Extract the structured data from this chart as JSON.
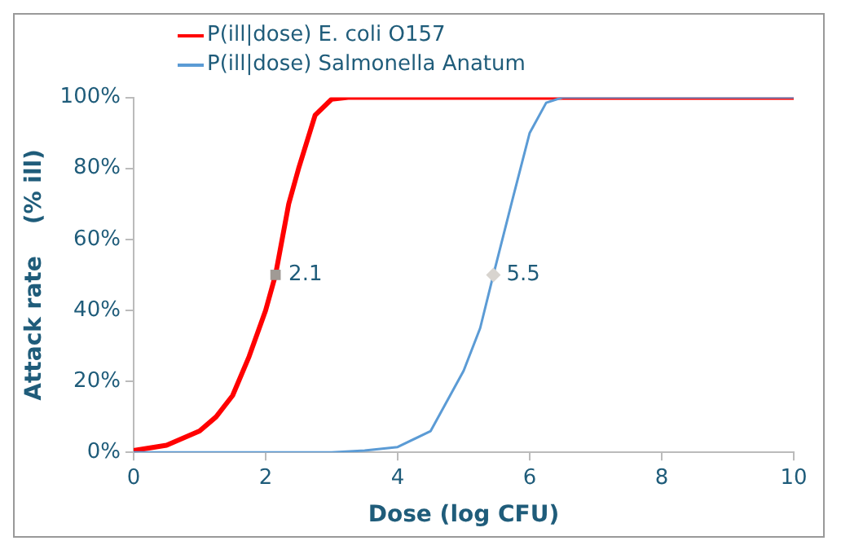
{
  "chart_data": {
    "type": "line",
    "xlabel": "Dose (log CFU)",
    "ylabel": "Attack rate    (% ill)",
    "xlim": [
      0,
      10
    ],
    "xticks": [
      0,
      2,
      4,
      6,
      8,
      10
    ],
    "ylim": [
      0,
      100
    ],
    "yticks": [
      {
        "value": 0,
        "label": "0%"
      },
      {
        "value": 20,
        "label": "20%"
      },
      {
        "value": 40,
        "label": "40%"
      },
      {
        "value": 60,
        "label": "60%"
      },
      {
        "value": 80,
        "label": "80%"
      },
      {
        "value": 100,
        "label": "100%"
      }
    ],
    "grid": false,
    "legend": "top",
    "marker": "none",
    "line_style": "solid",
    "series": [
      {
        "name": "P(ill|dose) E. coli O157",
        "color": "#ff0000",
        "x": [
          0,
          0.5,
          1,
          1.25,
          1.5,
          1.75,
          2,
          2.15,
          2.35,
          2.5,
          2.75,
          3,
          3.25,
          4,
          6,
          8,
          10
        ],
        "values": [
          0.5,
          2,
          6,
          10,
          16,
          27,
          40,
          50,
          70,
          80,
          95,
          99.5,
          100,
          100,
          100,
          100,
          100
        ]
      },
      {
        "name": "P(ill|dose) Salmonella Anatum",
        "color": "#5b9bd5",
        "x": [
          0,
          2,
          3,
          3.5,
          4,
          4.5,
          5,
          5.25,
          5.45,
          5.75,
          6,
          6.25,
          6.5,
          8,
          10
        ],
        "values": [
          0,
          0,
          0,
          0.5,
          1.5,
          6,
          23,
          35,
          50,
          72,
          90,
          98.5,
          100,
          100,
          100
        ]
      },
      {
        "type": "scatter",
        "color": "#a09a95",
        "marker": "square",
        "x": [
          2.15
        ],
        "values": [
          50
        ]
      },
      {
        "type": "scatter",
        "color": "#d8d4cf",
        "marker": "diamond",
        "x": [
          5.45
        ],
        "values": [
          50
        ]
      }
    ],
    "annotations": [
      {
        "text": "2.1",
        "x": 2.15,
        "y": 50
      },
      {
        "text": "5.5",
        "x": 5.45,
        "y": 50
      }
    ]
  }
}
